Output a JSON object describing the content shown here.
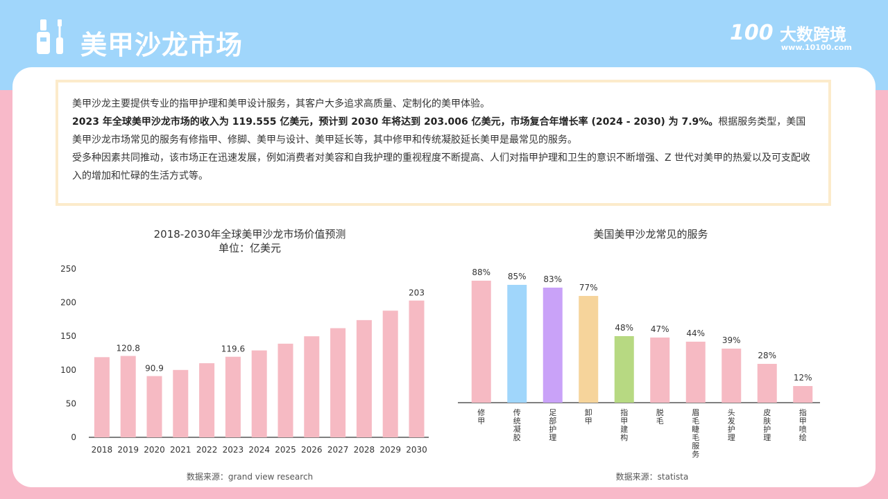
{
  "header": {
    "title": "美甲沙龙市场",
    "logo_number": "100",
    "logo_text": "大数跨境",
    "logo_url": "www.10100.com"
  },
  "intro": {
    "p1": "美甲沙龙主要提供专业的指甲护理和美甲设计服务，其客户大多追求高质量、定制化的美甲体验。",
    "p2_bold": "2023 年全球美甲沙龙市场的收入为 119.555 亿美元，预计到 2030 年将达到 203.006 亿美元，市场复合年增长率 (2024 - 2030) 为 7.9%。",
    "p2_rest": "根据服务类型，美国美甲沙龙市场常见的服务有修指甲、修脚、美甲与设计、美甲延长等，其中修甲和传统凝胶延长美甲是最常见的服务。",
    "p3": "受多种因素共同推动，该市场正在迅速发展，例如消费者对美容和自我护理的重视程度不断提高、人们对指甲护理和卫生的意识不断增强、Z 世代对美甲的热爱以及可支配收入的增加和忙碌的生活方式等。"
  },
  "colors": {
    "top_band": "#a0d6fb",
    "background": "#f8b9c9",
    "bar_pink": "#f6bac3",
    "intro_border": "#fcebcb"
  },
  "chart_data": [
    {
      "type": "bar",
      "title": "2018-2030年全球美甲沙龙市场价值预测",
      "subtitle": "单位：亿美元",
      "categories": [
        "2018",
        "2019",
        "2020",
        "2021",
        "2022",
        "2023",
        "2024",
        "2025",
        "2026",
        "2027",
        "2028",
        "2029",
        "2030"
      ],
      "values": [
        119,
        120.8,
        90.9,
        100,
        110,
        119.6,
        129,
        139,
        150,
        162,
        174,
        188,
        203
      ],
      "data_labels": {
        "1": "120.8",
        "2": "90.9",
        "5": "119.6",
        "12": "203"
      },
      "yticks": [
        "0",
        "50",
        "100",
        "150",
        "200",
        "250"
      ],
      "ylim": [
        0,
        250
      ],
      "grid": false,
      "source": "数据来源：grand view research"
    },
    {
      "type": "bar",
      "title": "美国美甲沙龙常见的服务",
      "categories": [
        "修甲",
        "传统凝胶",
        "足部护理",
        "卸甲",
        "指甲建构",
        "脱毛",
        "眉毛睫毛服务",
        "头发护理",
        "皮肤护理",
        "指甲喷绘"
      ],
      "values": [
        88,
        85,
        83,
        77,
        48,
        47,
        44,
        39,
        28,
        12
      ],
      "labels": [
        "88%",
        "85%",
        "83%",
        "77%",
        "48%",
        "47%",
        "44%",
        "39%",
        "28%",
        "12%"
      ],
      "colors": [
        "#f6bac3",
        "#a0d6fb",
        "#c9a2f8",
        "#f6d49b",
        "#b7d982",
        "#f6bac3",
        "#f6bac3",
        "#f6bac3",
        "#f6bac3",
        "#f6bac3"
      ],
      "ylim": [
        0,
        100
      ],
      "grid": false,
      "source": "数据来源：statista"
    }
  ]
}
